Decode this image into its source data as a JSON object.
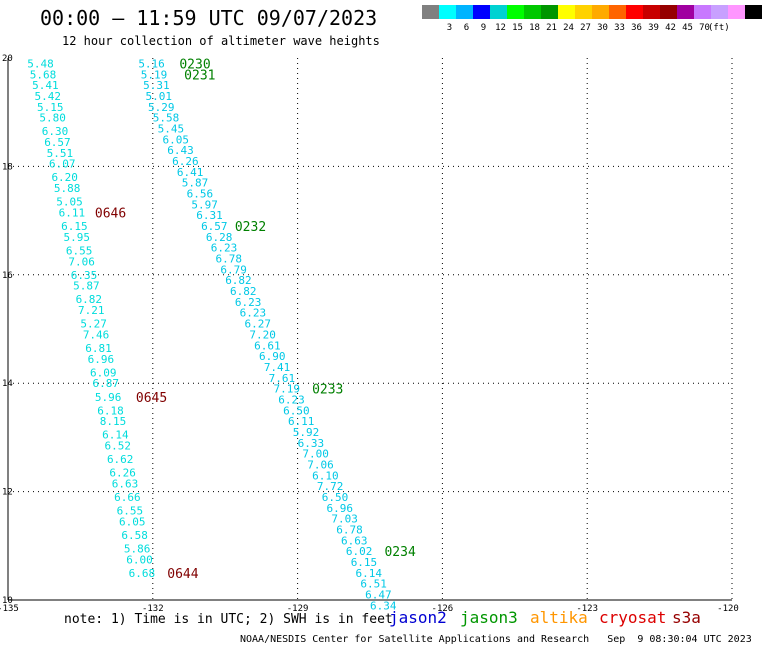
{
  "header": {
    "title": "00:00 – 11:59 UTC 09/07/2023",
    "subtitle": "12 hour collection of altimeter wave heights"
  },
  "colorbar": {
    "swatches": [
      "#808080",
      "#00ffff",
      "#00b4ff",
      "#0000ff",
      "#00d2d2",
      "#00ff00",
      "#00c800",
      "#009600",
      "#ffff00",
      "#ffd200",
      "#ffaa00",
      "#ff6400",
      "#ff0000",
      "#c80000",
      "#960000",
      "#a000a0",
      "#c878ff",
      "#c8a0ff",
      "#ff96ff",
      "#000000"
    ],
    "labels": [
      "3",
      "6",
      "9",
      "12",
      "15",
      "18",
      "21",
      "24",
      "27",
      "30",
      "33",
      "36",
      "39",
      "42",
      "45",
      "70"
    ],
    "unit": "(ft)"
  },
  "map": {
    "lon_range": [
      -135,
      -120
    ],
    "lat_range": [
      10,
      20
    ],
    "x_ticks": [
      "-135",
      "-132",
      "-129",
      "-126",
      "-123",
      "-120"
    ],
    "y_ticks": [
      "20",
      "18",
      "16",
      "14",
      "12",
      "10"
    ],
    "grid": true
  },
  "chart_data": {
    "type": "scatter",
    "value_color": "#00c8e6",
    "tracks": [
      {
        "color": "#00dcdc",
        "points": [
          {
            "x": -134.6,
            "y": 19.9,
            "v": "5.48"
          },
          {
            "x": -134.55,
            "y": 19.7,
            "v": "5.68"
          },
          {
            "x": -134.5,
            "y": 19.5,
            "v": "5.41"
          },
          {
            "x": -134.45,
            "y": 19.3,
            "v": "5.42"
          },
          {
            "x": -134.4,
            "y": 19.1,
            "v": "5.15"
          },
          {
            "x": -134.35,
            "y": 18.9,
            "v": "5.80"
          },
          {
            "x": -134.3,
            "y": 18.65,
            "v": "6.30"
          },
          {
            "x": -134.25,
            "y": 18.45,
            "v": "6.57"
          },
          {
            "x": -134.2,
            "y": 18.25,
            "v": "5.51"
          },
          {
            "x": -134.15,
            "y": 18.05,
            "v": "6.07"
          },
          {
            "x": -134.1,
            "y": 17.8,
            "v": "6.20"
          },
          {
            "x": -134.05,
            "y": 17.6,
            "v": "5.88"
          },
          {
            "x": -134.0,
            "y": 17.35,
            "v": "5.05"
          },
          {
            "x": -133.95,
            "y": 17.15,
            "v": "6.11"
          },
          {
            "x": -133.9,
            "y": 16.9,
            "v": "6.15"
          },
          {
            "x": -133.85,
            "y": 16.7,
            "v": "5.95"
          },
          {
            "x": -133.8,
            "y": 16.45,
            "v": "6.55"
          },
          {
            "x": -133.75,
            "y": 16.25,
            "v": "7.06"
          },
          {
            "x": -133.7,
            "y": 16.0,
            "v": "6.35"
          },
          {
            "x": -133.65,
            "y": 15.8,
            "v": "5.87"
          },
          {
            "x": -133.6,
            "y": 15.55,
            "v": "6.82"
          },
          {
            "x": -133.55,
            "y": 15.35,
            "v": "7.21"
          },
          {
            "x": -133.5,
            "y": 15.1,
            "v": "5.27"
          },
          {
            "x": -133.45,
            "y": 14.9,
            "v": "7.46"
          },
          {
            "x": -133.4,
            "y": 14.65,
            "v": "6.81"
          },
          {
            "x": -133.35,
            "y": 14.45,
            "v": "6.96"
          },
          {
            "x": -133.3,
            "y": 14.2,
            "v": "6.09"
          },
          {
            "x": -133.25,
            "y": 14.0,
            "v": "6.87"
          },
          {
            "x": -133.2,
            "y": 13.75,
            "v": "5.96"
          },
          {
            "x": -133.15,
            "y": 13.5,
            "v": "6.18"
          },
          {
            "x": -133.1,
            "y": 13.3,
            "v": "8.15"
          },
          {
            "x": -133.05,
            "y": 13.05,
            "v": "6.14"
          },
          {
            "x": -133.0,
            "y": 12.85,
            "v": "6.52"
          },
          {
            "x": -132.95,
            "y": 12.6,
            "v": "6.62"
          },
          {
            "x": -132.9,
            "y": 12.35,
            "v": "6.26"
          },
          {
            "x": -132.85,
            "y": 12.15,
            "v": "6.63"
          },
          {
            "x": -132.8,
            "y": 11.9,
            "v": "6.66"
          },
          {
            "x": -132.75,
            "y": 11.65,
            "v": "6.55"
          },
          {
            "x": -132.7,
            "y": 11.45,
            "v": "6.05"
          },
          {
            "x": -132.65,
            "y": 11.2,
            "v": "6.58"
          },
          {
            "x": -132.6,
            "y": 10.95,
            "v": "5.86"
          },
          {
            "x": -132.55,
            "y": 10.75,
            "v": "6.00"
          },
          {
            "x": -132.5,
            "y": 10.5,
            "v": "6.68"
          }
        ],
        "labels": [
          {
            "text": "0646",
            "color": "#800000",
            "x": -133.2,
            "y": 17.15
          },
          {
            "text": "0645",
            "color": "#800000",
            "x": -132.35,
            "y": 13.75
          },
          {
            "text": "0644",
            "color": "#800000",
            "x": -131.7,
            "y": 10.5
          }
        ]
      },
      {
        "color": "#00c8e6",
        "points": [
          {
            "x": -132.3,
            "y": 19.9,
            "v": "5.16"
          },
          {
            "x": -132.25,
            "y": 19.7,
            "v": "5.19"
          },
          {
            "x": -132.2,
            "y": 19.5,
            "v": "5.31"
          },
          {
            "x": -132.15,
            "y": 19.3,
            "v": "5.01"
          },
          {
            "x": -132.1,
            "y": 19.1,
            "v": "5.29"
          },
          {
            "x": -132.0,
            "y": 18.9,
            "v": "5.58"
          },
          {
            "x": -131.9,
            "y": 18.7,
            "v": "5.45"
          },
          {
            "x": -131.8,
            "y": 18.5,
            "v": "6.05"
          },
          {
            "x": -131.7,
            "y": 18.3,
            "v": "6.43"
          },
          {
            "x": -131.6,
            "y": 18.1,
            "v": "6.26"
          },
          {
            "x": -131.5,
            "y": 17.9,
            "v": "6.41"
          },
          {
            "x": -131.4,
            "y": 17.7,
            "v": "5.87"
          },
          {
            "x": -131.3,
            "y": 17.5,
            "v": "6.56"
          },
          {
            "x": -131.2,
            "y": 17.3,
            "v": "5.97"
          },
          {
            "x": -131.1,
            "y": 17.1,
            "v": "6.31"
          },
          {
            "x": -131.0,
            "y": 16.9,
            "v": "6.57"
          },
          {
            "x": -130.9,
            "y": 16.7,
            "v": "6.28"
          },
          {
            "x": -130.8,
            "y": 16.5,
            "v": "6.23"
          },
          {
            "x": -130.7,
            "y": 16.3,
            "v": "6.78"
          },
          {
            "x": -130.6,
            "y": 16.1,
            "v": "6.79"
          },
          {
            "x": -130.5,
            "y": 15.9,
            "v": "6.82"
          },
          {
            "x": -130.4,
            "y": 15.7,
            "v": "6.82"
          },
          {
            "x": -130.3,
            "y": 15.5,
            "v": "6.23"
          },
          {
            "x": -130.2,
            "y": 15.3,
            "v": "6.23"
          },
          {
            "x": -130.1,
            "y": 15.1,
            "v": "6.27"
          },
          {
            "x": -130.0,
            "y": 14.9,
            "v": "7.20"
          },
          {
            "x": -129.9,
            "y": 14.7,
            "v": "6.61"
          },
          {
            "x": -129.8,
            "y": 14.5,
            "v": "6.90"
          },
          {
            "x": -129.7,
            "y": 14.3,
            "v": "7.41"
          },
          {
            "x": -129.6,
            "y": 14.1,
            "v": "7.61"
          },
          {
            "x": -129.5,
            "y": 13.9,
            "v": "7.19"
          },
          {
            "x": -129.4,
            "y": 13.7,
            "v": "6.23"
          },
          {
            "x": -129.3,
            "y": 13.5,
            "v": "6.50"
          },
          {
            "x": -129.2,
            "y": 13.3,
            "v": "6.11"
          },
          {
            "x": -129.1,
            "y": 13.1,
            "v": "5.92"
          },
          {
            "x": -129.0,
            "y": 12.9,
            "v": "6.33"
          },
          {
            "x": -128.9,
            "y": 12.7,
            "v": "7.00"
          },
          {
            "x": -128.8,
            "y": 12.5,
            "v": "7.06"
          },
          {
            "x": -128.7,
            "y": 12.3,
            "v": "6.10"
          },
          {
            "x": -128.6,
            "y": 12.1,
            "v": "7.72"
          },
          {
            "x": -128.5,
            "y": 11.9,
            "v": "6.50"
          },
          {
            "x": -128.4,
            "y": 11.7,
            "v": "6.96"
          },
          {
            "x": -128.3,
            "y": 11.5,
            "v": "7.03"
          },
          {
            "x": -128.2,
            "y": 11.3,
            "v": "6.78"
          },
          {
            "x": -128.1,
            "y": 11.1,
            "v": "6.63"
          },
          {
            "x": -128.0,
            "y": 10.9,
            "v": "6.02"
          },
          {
            "x": -127.9,
            "y": 10.7,
            "v": "6.15"
          },
          {
            "x": -127.8,
            "y": 10.5,
            "v": "6.14"
          },
          {
            "x": -127.7,
            "y": 10.3,
            "v": "6.51"
          },
          {
            "x": -127.6,
            "y": 10.1,
            "v": "6.47"
          },
          {
            "x": -127.5,
            "y": 9.9,
            "v": "6.34"
          }
        ],
        "labels": [
          {
            "text": "0230",
            "color": "#008000",
            "x": -131.45,
            "y": 19.9
          },
          {
            "text": "0231",
            "color": "#008000",
            "x": -131.35,
            "y": 19.7
          },
          {
            "text": "0232",
            "color": "#008000",
            "x": -130.3,
            "y": 16.9
          },
          {
            "text": "0233",
            "color": "#008000",
            "x": -128.7,
            "y": 13.9
          },
          {
            "text": "0234",
            "color": "#008000",
            "x": -127.2,
            "y": 10.9
          }
        ]
      }
    ]
  },
  "footer": {
    "note": "note: 1) Time is in UTC; 2) SWH is in feet",
    "legend": [
      {
        "name": "jason2",
        "color": "#0000d2"
      },
      {
        "name": "jason3",
        "color": "#009600"
      },
      {
        "name": "altika",
        "color": "#ff9600"
      },
      {
        "name": "cryosat",
        "color": "#dc0000"
      },
      {
        "name": "s3a",
        "color": "#960000"
      }
    ],
    "credit": "NOAA/NESDIS Center for Satellite Applications and Research   Sep  9 08:30:04 UTC 2023"
  }
}
